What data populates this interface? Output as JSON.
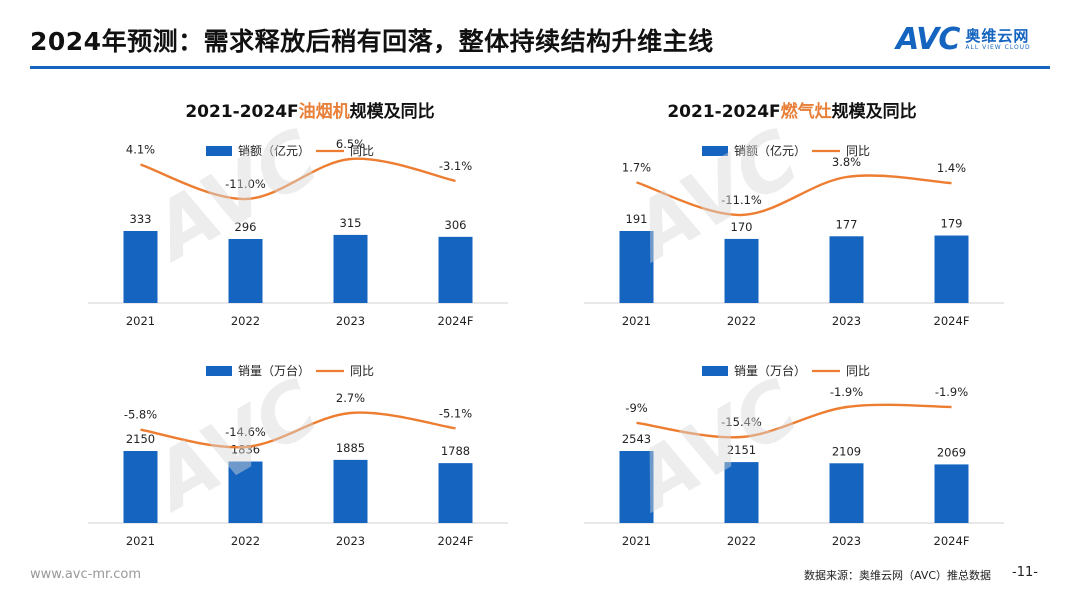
{
  "header": {
    "title": "2024年预测：需求释放后稍有回落，整体持续结构升维主线",
    "logo_mark": "AVC",
    "logo_cn": "奥维云网",
    "logo_en": "ALL VIEW CLOUD"
  },
  "panel_titles": {
    "left_prefix": "2021-2024F",
    "left_highlight": "油烟机",
    "left_suffix": "规模及同比",
    "right_prefix": "2021-2024F",
    "right_highlight": "燃气灶",
    "right_suffix": "规模及同比"
  },
  "colors": {
    "bar": "#1565c0",
    "line": "#ed7d31",
    "accent_title": "#e8803a"
  },
  "chart_data": [
    {
      "type": "bar",
      "categories": [
        "2021",
        "2022",
        "2023",
        "2024F"
      ],
      "series": [
        {
          "name": "销额（亿元）",
          "kind": "bar",
          "values": [
            333,
            296,
            315,
            306
          ],
          "labels": [
            "333",
            "296",
            "315",
            "306"
          ]
        },
        {
          "name": "同比",
          "kind": "line",
          "values": [
            4.1,
            -11.0,
            6.5,
            -3.1
          ],
          "labels": [
            "4.1%",
            "-11.0%",
            "6.5%",
            "-3.1%"
          ]
        }
      ]
    },
    {
      "type": "bar",
      "categories": [
        "2021",
        "2022",
        "2023",
        "2024F"
      ],
      "series": [
        {
          "name": "销额（亿元）",
          "kind": "bar",
          "values": [
            191,
            170,
            177,
            179
          ],
          "labels": [
            "191",
            "170",
            "177",
            "179"
          ]
        },
        {
          "name": "同比",
          "kind": "line",
          "values": [
            1.7,
            -11.1,
            3.8,
            1.4
          ],
          "labels": [
            "1.7%",
            "-11.1%",
            "3.8%",
            "1.4%"
          ]
        }
      ]
    },
    {
      "type": "bar",
      "categories": [
        "2021",
        "2022",
        "2023",
        "2024F"
      ],
      "series": [
        {
          "name": "销量（万台）",
          "kind": "bar",
          "values": [
            2150,
            1836,
            1885,
            1788
          ],
          "labels": [
            "2150",
            "1836",
            "1885",
            "1788"
          ]
        },
        {
          "name": "同比",
          "kind": "line",
          "values": [
            -5.8,
            -14.6,
            2.7,
            -5.1
          ],
          "labels": [
            "-5.8%",
            "-14.6%",
            "2.7%",
            "-5.1%"
          ]
        }
      ]
    },
    {
      "type": "bar",
      "categories": [
        "2021",
        "2022",
        "2023",
        "2024F"
      ],
      "series": [
        {
          "name": "销量（万台）",
          "kind": "bar",
          "values": [
            2543,
            2151,
            2109,
            2069
          ],
          "labels": [
            "2543",
            "2151",
            "2109",
            "2069"
          ]
        },
        {
          "name": "同比",
          "kind": "line",
          "values": [
            -9,
            -15.4,
            -1.9,
            -1.9
          ],
          "labels": [
            "-9%",
            "-15.4%",
            "-1.9%",
            "-1.9%"
          ]
        }
      ]
    }
  ],
  "footer": {
    "website": "www.avc-mr.com",
    "source": "数据来源：奥维云网（AVC）推总数据",
    "page": "-11-"
  }
}
